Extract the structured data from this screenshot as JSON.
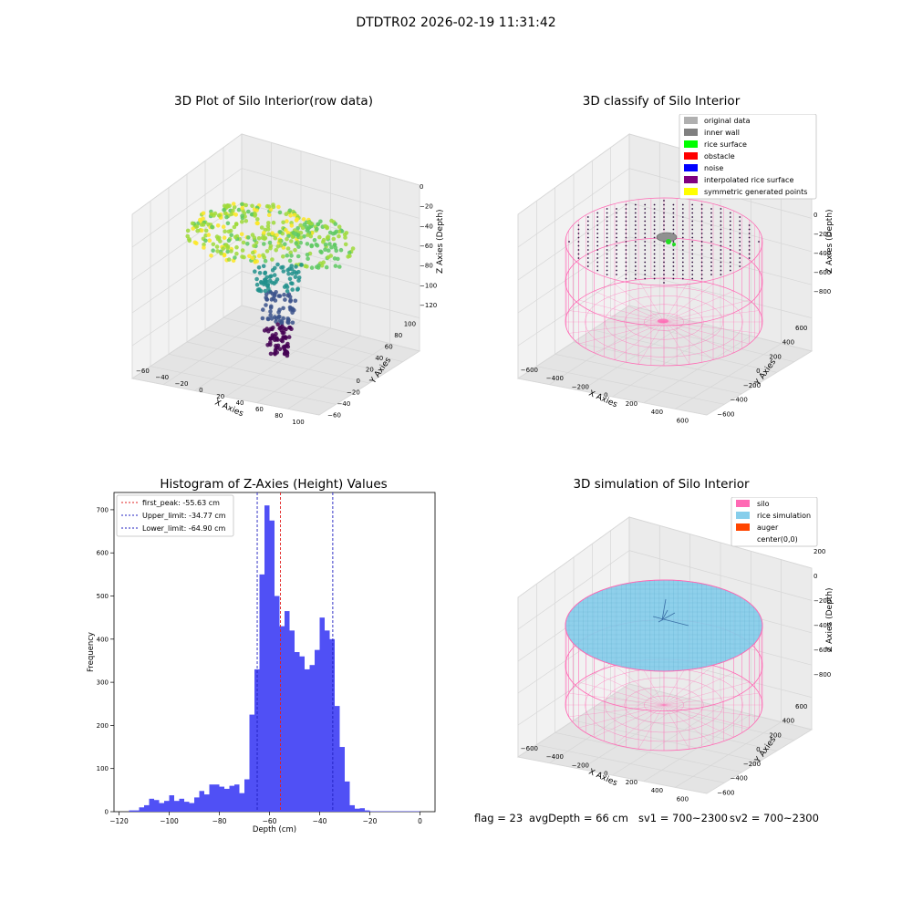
{
  "figure": {
    "suptitle": "DTDTR02 2026-02-19 11:31:42",
    "footer": {
      "flag": "flag = 23",
      "avg_depth": "avgDepth = 66 cm",
      "sv1": "sv1 = 700~2300",
      "sv2": "sv2 = 700~2300"
    },
    "colors": {
      "histogram_bar": "#5050f5",
      "first_peak_line": "#e02020",
      "limit_lines": "#2020c0",
      "silo_wireframe": "#ff69b4",
      "rice_simulation": "#87ceeb",
      "auger": "#ff4500",
      "grid_pane": "#f2f2f2",
      "viridis": [
        "#440154",
        "#3b528b",
        "#21918c",
        "#5ec962",
        "#9fda3a",
        "#fde725"
      ]
    }
  },
  "chart_data": [
    {
      "type": "scatter",
      "projection": "3d",
      "title": "3D Plot of Silo Interior(row data)",
      "xlabel": "X Axies",
      "ylabel": "Y Axies",
      "zlabel": "Z Axies (Depth)",
      "xticks": [
        "−60",
        "−40",
        "−20",
        "0",
        "20",
        "40",
        "60",
        "80",
        "100"
      ],
      "yticks": [
        "−60",
        "−40",
        "−20",
        "0",
        "20",
        "40",
        "60",
        "80",
        "100"
      ],
      "zticks": [
        "0",
        "−20",
        "−40",
        "−60",
        "−80",
        "−100",
        "−120"
      ],
      "xlim": [
        -60,
        100
      ],
      "ylim": [
        -60,
        100
      ],
      "zlim": [
        -120,
        0
      ],
      "colormap": "viridis"
    },
    {
      "type": "scatter",
      "projection": "3d",
      "title": "3D classify of Silo Interior",
      "xlabel": "X Axies",
      "ylabel": "Y Axies",
      "zlabel": "Z Axies (Depth)",
      "xticks": [
        "−600",
        "−400",
        "−200",
        "0",
        "200",
        "400",
        "600"
      ],
      "yticks": [
        "−600",
        "−400",
        "−200",
        "0",
        "200",
        "400",
        "600"
      ],
      "zticks": [
        "0",
        "−200",
        "−400",
        "−600",
        "−800"
      ],
      "xlim": [
        -650,
        650
      ],
      "ylim": [
        -650,
        650
      ],
      "zlim": [
        -900,
        100
      ],
      "legend": {
        "placement": "top-right",
        "entries": [
          {
            "label": "original data",
            "color": "#b0b0b0"
          },
          {
            "label": "inner wall",
            "color": "#808080"
          },
          {
            "label": "rice surface",
            "color": "#00ff00"
          },
          {
            "label": "obstacle",
            "color": "#ff0000"
          },
          {
            "label": "noise",
            "color": "#0000ff"
          },
          {
            "label": "interpolated rice surface",
            "color": "#800080"
          },
          {
            "label": "symmetric generated points",
            "color": "#ffff00"
          }
        ]
      }
    },
    {
      "type": "bar",
      "title": "Histogram of Z-Axies (Height) Values",
      "xlabel": "Depth (cm)",
      "ylabel": "Frequency",
      "xlim": [
        -122,
        6
      ],
      "ylim": [
        0,
        740
      ],
      "xticks": [
        -120,
        -100,
        -80,
        -60,
        -40,
        -20,
        0
      ],
      "yticks": [
        0,
        100,
        200,
        300,
        400,
        500,
        600,
        700
      ],
      "bin_width": 2,
      "bins_start": [
        -116,
        -114,
        -112,
        -110,
        -108,
        -106,
        -104,
        -102,
        -100,
        -98,
        -96,
        -94,
        -92,
        -90,
        -88,
        -86,
        -84,
        -82,
        -80,
        -78,
        -76,
        -74,
        -72,
        -70,
        -68,
        -66,
        -64,
        -62,
        -60,
        -58,
        -56,
        -54,
        -52,
        -50,
        -48,
        -46,
        -44,
        -42,
        -40,
        -38,
        -36,
        -34,
        -32,
        -30,
        -28,
        -26,
        -24,
        -22,
        -20,
        -18,
        -16,
        -14,
        -12,
        -10,
        -8,
        -6,
        -4,
        -2
      ],
      "values": [
        3,
        3,
        10,
        15,
        30,
        27,
        20,
        25,
        38,
        25,
        30,
        23,
        20,
        33,
        48,
        40,
        63,
        63,
        58,
        53,
        60,
        63,
        43,
        75,
        225,
        330,
        550,
        710,
        675,
        500,
        430,
        465,
        420,
        370,
        360,
        330,
        340,
        375,
        450,
        420,
        400,
        245,
        150,
        70,
        15,
        7,
        8,
        3,
        1,
        1,
        1,
        1,
        1,
        1,
        1,
        1,
        1,
        1
      ],
      "lines": [
        {
          "label": "first_peak: -55.63 cm",
          "x": -55.63,
          "style": "dashed",
          "color": "#e02020"
        },
        {
          "label": "Upper_limit: -34.77 cm",
          "x": -34.77,
          "style": "dashed",
          "color": "#2020c0"
        },
        {
          "label": "Lower_limit: -64.90 cm",
          "x": -64.9,
          "style": "dashed",
          "color": "#2020c0"
        }
      ],
      "legend": {
        "placement": "top-left"
      }
    },
    {
      "type": "scatter",
      "projection": "3d",
      "title": "3D simulation of Silo Interior",
      "xlabel": "X Axies",
      "ylabel": "Y Axies",
      "zlabel": "Z Axies (Depth)",
      "xticks": [
        "−600",
        "−400",
        "−200",
        "0",
        "200",
        "400",
        "600"
      ],
      "yticks": [
        "−600",
        "−400",
        "−200",
        "0",
        "200",
        "400",
        "600"
      ],
      "zticks": [
        "200",
        "0",
        "−200",
        "−400",
        "−600",
        "−800"
      ],
      "xlim": [
        -650,
        650
      ],
      "ylim": [
        -650,
        650
      ],
      "zlim": [
        -900,
        300
      ],
      "legend": {
        "placement": "top-right",
        "entries": [
          {
            "label": "silo",
            "color": "#ff69b4"
          },
          {
            "label": "rice simulation",
            "color": "#87ceeb"
          },
          {
            "label": "auger",
            "color": "#ff4500"
          },
          {
            "label": "center(0,0)",
            "color": "#ffffff"
          }
        ]
      }
    }
  ]
}
